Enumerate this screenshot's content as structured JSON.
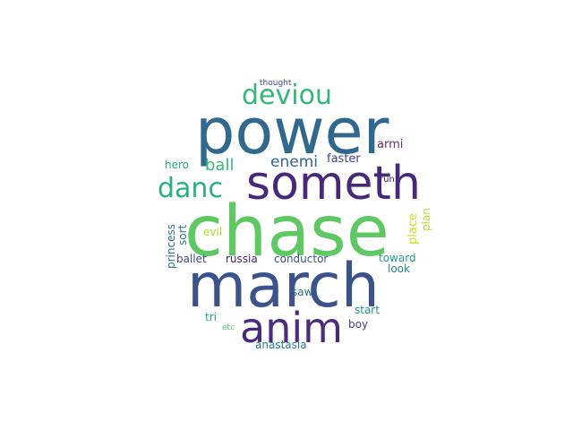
{
  "words": [
    {
      "text": "chase",
      "color": "#5ec962"
    },
    {
      "text": "power",
      "color": "#31688e"
    },
    {
      "text": "march",
      "color": "#3b528b"
    },
    {
      "text": "someth",
      "color": "#482878"
    },
    {
      "text": "anim",
      "color": "#472d7b"
    },
    {
      "text": "deviou",
      "color": "#35b779"
    },
    {
      "text": "danc",
      "color": "#2ab07f"
    },
    {
      "text": "ball",
      "color": "#3aba76"
    },
    {
      "text": "enemi",
      "color": "#33638d"
    },
    {
      "text": "armi",
      "color": "#6a2c70"
    },
    {
      "text": "faster",
      "color": "#404688"
    },
    {
      "text": "hero",
      "color": "#22a884"
    },
    {
      "text": "run",
      "color": "#481a6c"
    },
    {
      "text": "place",
      "color": "#c8e020"
    },
    {
      "text": "plan",
      "color": "#b5de2b"
    },
    {
      "text": "princess",
      "color": "#2c728e"
    },
    {
      "text": "sort",
      "color": "#2a788e"
    },
    {
      "text": "evil",
      "color": "#b5de2b"
    },
    {
      "text": "ballet",
      "color": "#3e4a89"
    },
    {
      "text": "russia",
      "color": "#482475"
    },
    {
      "text": "conductor",
      "color": "#3b528b"
    },
    {
      "text": "toward",
      "color": "#1f9e89"
    },
    {
      "text": "look",
      "color": "#26828e"
    },
    {
      "text": "saw",
      "color": "#2c728e"
    },
    {
      "text": "start",
      "color": "#21918c"
    },
    {
      "text": "tri",
      "color": "#1fa187"
    },
    {
      "text": "etc",
      "color": "#4ac16d"
    },
    {
      "text": "boy",
      "color": "#414487"
    },
    {
      "text": "anastasia",
      "color": "#2a788e"
    },
    {
      "text": "thought",
      "color": "#3e4a89"
    }
  ]
}
